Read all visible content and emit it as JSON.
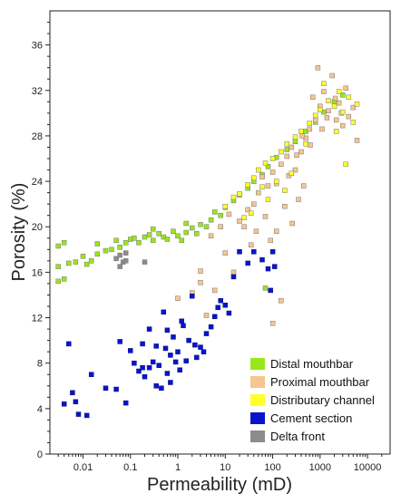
{
  "chart_data": {
    "type": "scatter",
    "xlabel": "Permeability (mD)",
    "ylabel": "Porosity (%)",
    "xscale": "log",
    "xlim": [
      0.002,
      30000
    ],
    "ylim": [
      0,
      39
    ],
    "x_ticks": [
      0.01,
      0.1,
      1,
      10,
      100,
      1000,
      10000
    ],
    "x_tick_labels": [
      "0.01",
      "0.1",
      "1",
      "10",
      "100",
      "1000",
      "10000"
    ],
    "y_ticks": [
      0,
      4,
      8,
      12,
      16,
      20,
      24,
      28,
      32,
      36
    ],
    "y_tick_labels": [
      "0",
      "4",
      "8",
      "12",
      "16",
      "20",
      "24",
      "28",
      "32",
      "36"
    ],
    "legend_position": "bottom-right",
    "grid": false,
    "series": [
      {
        "name": "Distal mouthbar",
        "color": "#99e61a",
        "points": [
          [
            0.003,
            15.2
          ],
          [
            0.004,
            15.4
          ],
          [
            0.003,
            16.5
          ],
          [
            0.005,
            16.8
          ],
          [
            0.003,
            18.3
          ],
          [
            0.004,
            18.6
          ],
          [
            0.007,
            16.9
          ],
          [
            0.01,
            17.4
          ],
          [
            0.012,
            16.7
          ],
          [
            0.015,
            17.0
          ],
          [
            0.02,
            17.6
          ],
          [
            0.03,
            17.9
          ],
          [
            0.04,
            18.0
          ],
          [
            0.05,
            18.8
          ],
          [
            0.06,
            18.2
          ],
          [
            0.08,
            18.6
          ],
          [
            0.1,
            18.9
          ],
          [
            0.12,
            19.0
          ],
          [
            0.15,
            18.6
          ],
          [
            0.2,
            19.1
          ],
          [
            0.25,
            19.3
          ],
          [
            0.3,
            18.8
          ],
          [
            0.4,
            19.4
          ],
          [
            0.5,
            19.1
          ],
          [
            0.6,
            18.9
          ],
          [
            0.8,
            19.6
          ],
          [
            1.0,
            19.2
          ],
          [
            1.2,
            18.8
          ],
          [
            1.5,
            19.5
          ],
          [
            2.0,
            19.9
          ],
          [
            2.5,
            19.4
          ],
          [
            3.0,
            20.2
          ],
          [
            4.0,
            20.0
          ],
          [
            5.0,
            20.6
          ],
          [
            6.0,
            21.3
          ],
          [
            8.0,
            21.0
          ],
          [
            10,
            21.7
          ],
          [
            15,
            22.3
          ],
          [
            20,
            22.8
          ],
          [
            30,
            23.4
          ],
          [
            40,
            24.0
          ],
          [
            60,
            24.6
          ],
          [
            80,
            25.3
          ],
          [
            120,
            26.1
          ],
          [
            200,
            26.8
          ],
          [
            300,
            27.5
          ],
          [
            500,
            28.4
          ],
          [
            800,
            29.2
          ],
          [
            1200,
            30.1
          ],
          [
            2000,
            31.0
          ],
          [
            3000,
            31.6
          ],
          [
            70,
            14.6
          ],
          [
            0.02,
            18.5
          ],
          [
            0.3,
            19.8
          ],
          [
            1.5,
            20.3
          ]
        ]
      },
      {
        "name": "Proximal mouthbar",
        "color": "#f7c58f",
        "points": [
          [
            1,
            13.7
          ],
          [
            2,
            14.2
          ],
          [
            3,
            15.1
          ],
          [
            6,
            14.4
          ],
          [
            10,
            17.7
          ],
          [
            15,
            16.0
          ],
          [
            20,
            20.5
          ],
          [
            30,
            21.5
          ],
          [
            40,
            22.0
          ],
          [
            50,
            23.0
          ],
          [
            60,
            24.4
          ],
          [
            80,
            23.6
          ],
          [
            100,
            24.8
          ],
          [
            150,
            25.5
          ],
          [
            200,
            26.2
          ],
          [
            250,
            27.0
          ],
          [
            300,
            25.0
          ],
          [
            400,
            26.6
          ],
          [
            500,
            27.8
          ],
          [
            600,
            28.6
          ],
          [
            800,
            29.4
          ],
          [
            1000,
            30.6
          ],
          [
            1200,
            31.9
          ],
          [
            1500,
            30.2
          ],
          [
            1800,
            33.3
          ],
          [
            2200,
            29.4
          ],
          [
            2500,
            30.9
          ],
          [
            3000,
            28.9
          ],
          [
            3500,
            32.2
          ],
          [
            4000,
            29.7
          ],
          [
            5000,
            30.5
          ],
          [
            6000,
            27.6
          ],
          [
            900,
            34.0
          ],
          [
            700,
            31.4
          ],
          [
            450,
            23.6
          ],
          [
            350,
            22.4
          ],
          [
            260,
            20.3
          ],
          [
            180,
            21.8
          ],
          [
            120,
            19.6
          ],
          [
            90,
            18.8
          ],
          [
            70,
            20.9
          ],
          [
            45,
            19.6
          ],
          [
            35,
            18.4
          ],
          [
            25,
            20.0
          ],
          [
            12,
            21.1
          ],
          [
            8,
            20.0
          ],
          [
            5,
            19.2
          ],
          [
            4,
            12.2
          ],
          [
            3,
            16.1
          ],
          [
            150,
            13.5
          ],
          [
            100,
            11.5
          ],
          [
            120,
            23.8
          ],
          [
            220,
            24.5
          ],
          [
            320,
            26.3
          ],
          [
            420,
            28.0
          ],
          [
            620,
            27.2
          ],
          [
            1100,
            28.6
          ],
          [
            1400,
            29.6
          ],
          [
            2100,
            31.3
          ],
          [
            2800,
            30.0
          ]
        ]
      },
      {
        "name": "Distributary channel",
        "color": "#ffff2a",
        "points": [
          [
            10,
            21.8
          ],
          [
            15,
            22.6
          ],
          [
            20,
            22.9
          ],
          [
            30,
            23.7
          ],
          [
            40,
            24.3
          ],
          [
            50,
            25.0
          ],
          [
            70,
            25.6
          ],
          [
            100,
            26.0
          ],
          [
            150,
            26.6
          ],
          [
            200,
            27.3
          ],
          [
            300,
            27.9
          ],
          [
            400,
            28.4
          ],
          [
            500,
            27.3
          ],
          [
            600,
            29.1
          ],
          [
            800,
            29.8
          ],
          [
            1000,
            30.3
          ],
          [
            1500,
            31.1
          ],
          [
            2000,
            30.6
          ],
          [
            2500,
            31.9
          ],
          [
            3000,
            30.1
          ],
          [
            4000,
            31.4
          ],
          [
            5000,
            29.2
          ],
          [
            6000,
            30.8
          ],
          [
            1200,
            32.6
          ],
          [
            2200,
            28.4
          ],
          [
            3500,
            25.5
          ],
          [
            250,
            24.7
          ],
          [
            180,
            23.2
          ],
          [
            120,
            24.0
          ],
          [
            80,
            22.4
          ],
          [
            60,
            23.5
          ],
          [
            35,
            21.2
          ],
          [
            25,
            20.8
          ]
        ]
      },
      {
        "name": "Cement section",
        "color": "#0a14cc",
        "points": [
          [
            0.004,
            4.4
          ],
          [
            0.005,
            9.7
          ],
          [
            0.006,
            5.4
          ],
          [
            0.007,
            4.6
          ],
          [
            0.008,
            3.5
          ],
          [
            0.012,
            3.4
          ],
          [
            0.015,
            7.0
          ],
          [
            0.03,
            5.8
          ],
          [
            0.05,
            5.7
          ],
          [
            0.06,
            9.9
          ],
          [
            0.08,
            4.5
          ],
          [
            0.1,
            9.1
          ],
          [
            0.12,
            8.0
          ],
          [
            0.15,
            7.3
          ],
          [
            0.18,
            9.7
          ],
          [
            0.2,
            6.8
          ],
          [
            0.25,
            11.0
          ],
          [
            0.3,
            8.1
          ],
          [
            0.35,
            6.0
          ],
          [
            0.4,
            7.8
          ],
          [
            0.45,
            5.8
          ],
          [
            0.5,
            12.5
          ],
          [
            0.55,
            9.3
          ],
          [
            0.6,
            7.1
          ],
          [
            0.7,
            8.7
          ],
          [
            0.8,
            10.3
          ],
          [
            1.0,
            9.0
          ],
          [
            1.1,
            7.4
          ],
          [
            1.3,
            11.3
          ],
          [
            1.5,
            8.2
          ],
          [
            1.7,
            10.0
          ],
          [
            2.0,
            13.9
          ],
          [
            2.3,
            9.6
          ],
          [
            2.5,
            8.5
          ],
          [
            3.0,
            9.4
          ],
          [
            3.5,
            9.0
          ],
          [
            4.0,
            10.6
          ],
          [
            5.0,
            11.2
          ],
          [
            6.0,
            12.1
          ],
          [
            7.0,
            12.9
          ],
          [
            8.0,
            13.5
          ],
          [
            10,
            13.1
          ],
          [
            12,
            12.4
          ],
          [
            15,
            15.6
          ],
          [
            20,
            17.8
          ],
          [
            30,
            16.8
          ],
          [
            40,
            17.8
          ],
          [
            60,
            17.1
          ],
          [
            80,
            16.3
          ],
          [
            90,
            14.4
          ],
          [
            100,
            17.8
          ],
          [
            110,
            16.5
          ],
          [
            0.35,
            9.5
          ],
          [
            0.25,
            7.6
          ],
          [
            0.7,
            6.3
          ],
          [
            1.2,
            11.7
          ],
          [
            0.18,
            7.6
          ],
          [
            0.9,
            8.1
          ],
          [
            0.6,
            10.9
          ]
        ]
      },
      {
        "name": "Delta front",
        "color": "#8c8c8c",
        "points": [
          [
            0.05,
            17.2
          ],
          [
            0.06,
            17.5
          ],
          [
            0.07,
            16.9
          ],
          [
            0.08,
            17.7
          ],
          [
            0.06,
            16.5
          ],
          [
            0.2,
            16.9
          ],
          [
            0.08,
            17.0
          ]
        ]
      }
    ]
  }
}
